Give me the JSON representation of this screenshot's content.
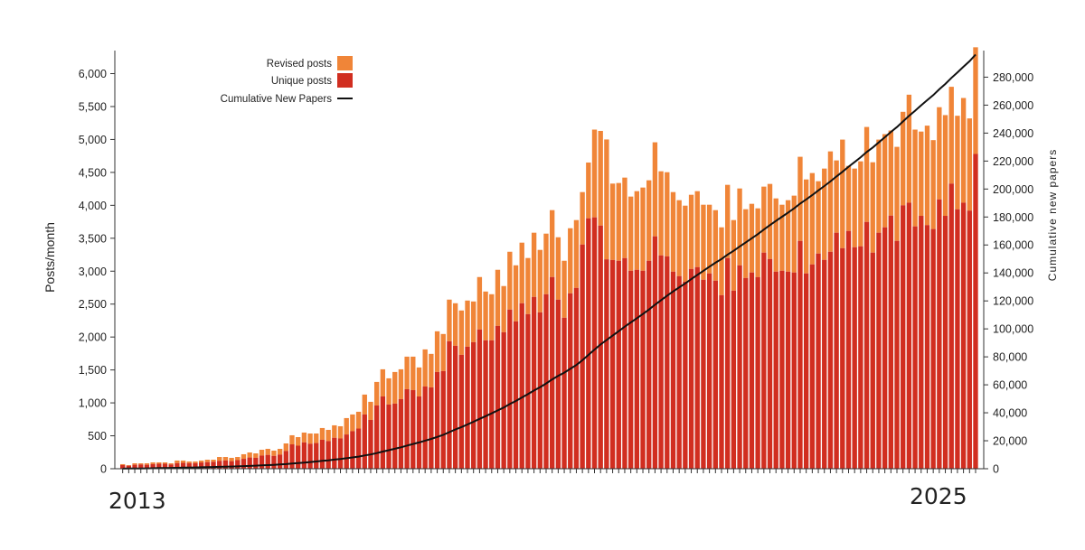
{
  "chart_data": {
    "type": "bar",
    "stacked": true,
    "x_tick_labels": [
      "2013",
      "2025"
    ],
    "ylabel": "Posts/month",
    "y2label": "Cumulative new papers",
    "ylim": [
      0,
      6350
    ],
    "y2lim": [
      0,
      299000
    ],
    "yticks": [
      0,
      500,
      1000,
      1500,
      2000,
      2500,
      3000,
      3500,
      4000,
      4500,
      5000,
      5500,
      6000
    ],
    "yticklabels": [
      "0",
      "500",
      "1,000",
      "1,500",
      "2,000",
      "2,500",
      "3,000",
      "3,500",
      "4,000",
      "4,500",
      "5,000",
      "5,500",
      "6,000"
    ],
    "y2ticks": [
      0,
      20000,
      40000,
      60000,
      80000,
      100000,
      120000,
      140000,
      160000,
      180000,
      200000,
      220000,
      240000,
      260000,
      280000
    ],
    "y2ticklabels": [
      "0",
      "20,000",
      "40,000",
      "60,000",
      "80,000",
      "100,000",
      "120,000",
      "140,000",
      "160,000",
      "180,000",
      "200,000",
      "220,000",
      "240,000",
      "260,000",
      "280,000"
    ],
    "legend_position": "top-left",
    "series": [
      {
        "name": "Unique posts",
        "color": "#D12E20",
        "values": [
          55,
          45,
          60,
          65,
          60,
          70,
          75,
          75,
          65,
          85,
          90,
          85,
          85,
          95,
          100,
          105,
          120,
          125,
          115,
          130,
          150,
          170,
          165,
          200,
          210,
          195,
          215,
          270,
          370,
          350,
          400,
          380,
          390,
          440,
          420,
          470,
          460,
          520,
          570,
          610,
          824,
          741,
          961,
          1098,
          975,
          989,
          1057,
          1208,
          1194,
          1098,
          1249,
          1236,
          1469,
          1483,
          1936,
          1867,
          1730,
          1853,
          1922,
          2114,
          1950,
          1950,
          2169,
          2073,
          2417,
          2238,
          2513,
          2348,
          2609,
          2375,
          2650,
          2911,
          2568,
          2293,
          2664,
          2746,
          3405,
          3803,
          3817,
          3693,
          3180,
          3170,
          3158,
          3199,
          3007,
          3021,
          3007,
          3158,
          3529,
          3240,
          3226,
          2993,
          2925,
          2842,
          3034,
          3062,
          2870,
          2966,
          2856,
          2636,
          3199,
          2705,
          3089,
          2897,
          2980,
          2911,
          3282,
          3185,
          2993,
          3007,
          2993,
          2980,
          3460,
          2966,
          3103,
          3268,
          3172,
          3295,
          3584,
          3350,
          3611,
          3364,
          3378,
          3748,
          3282,
          3584,
          3666,
          3844,
          3460,
          4000,
          4040,
          3680,
          3840,
          3700,
          3640,
          4090,
          3840,
          4330,
          3940,
          4040,
          3920,
          4780
        ]
      },
      {
        "name": "Revised posts",
        "color": "#F08538",
        "total_values": [
          69,
          55,
          82,
          82,
          82,
          96,
          96,
          96,
          82,
          124,
          124,
          110,
          110,
          124,
          137,
          137,
          178,
          178,
          165,
          178,
          220,
          247,
          233,
          288,
          302,
          275,
          302,
          384,
          508,
          480,
          549,
          535,
          535,
          618,
          590,
          659,
          645,
          769,
          824,
          865,
          1126,
          1016,
          1318,
          1510,
          1373,
          1469,
          1510,
          1702,
          1702,
          1538,
          1812,
          1744,
          2087,
          2046,
          2568,
          2513,
          2403,
          2554,
          2540,
          2911,
          2691,
          2650,
          3021,
          2774,
          3295,
          3089,
          3433,
          3200,
          3584,
          3323,
          3570,
          3927,
          3515,
          3158,
          3652,
          3776,
          4201,
          4650,
          5150,
          5130,
          5000,
          4330,
          4339,
          4421,
          4133,
          4215,
          4270,
          4380,
          4957,
          4517,
          4503,
          4201,
          4078,
          3995,
          4160,
          4215,
          4009,
          4009,
          3927,
          3666,
          4311,
          3776,
          4256,
          3941,
          4023,
          3954,
          4284,
          4325,
          4105,
          4009,
          4078,
          4147,
          4737,
          4393,
          4490,
          4366,
          4558,
          4819,
          4682,
          4998,
          4599,
          4558,
          4668,
          5190,
          4654,
          4998,
          5081,
          5136,
          4888,
          5420,
          5680,
          5150,
          5120,
          5210,
          4990,
          5490,
          5370,
          5800,
          5360,
          5630,
          5320,
          6400
        ]
      },
      {
        "name": "Cumulative New Papers",
        "type": "line",
        "axis": "right",
        "color": "#111111",
        "derived_from": "cumulative sum of Unique posts"
      }
    ]
  }
}
